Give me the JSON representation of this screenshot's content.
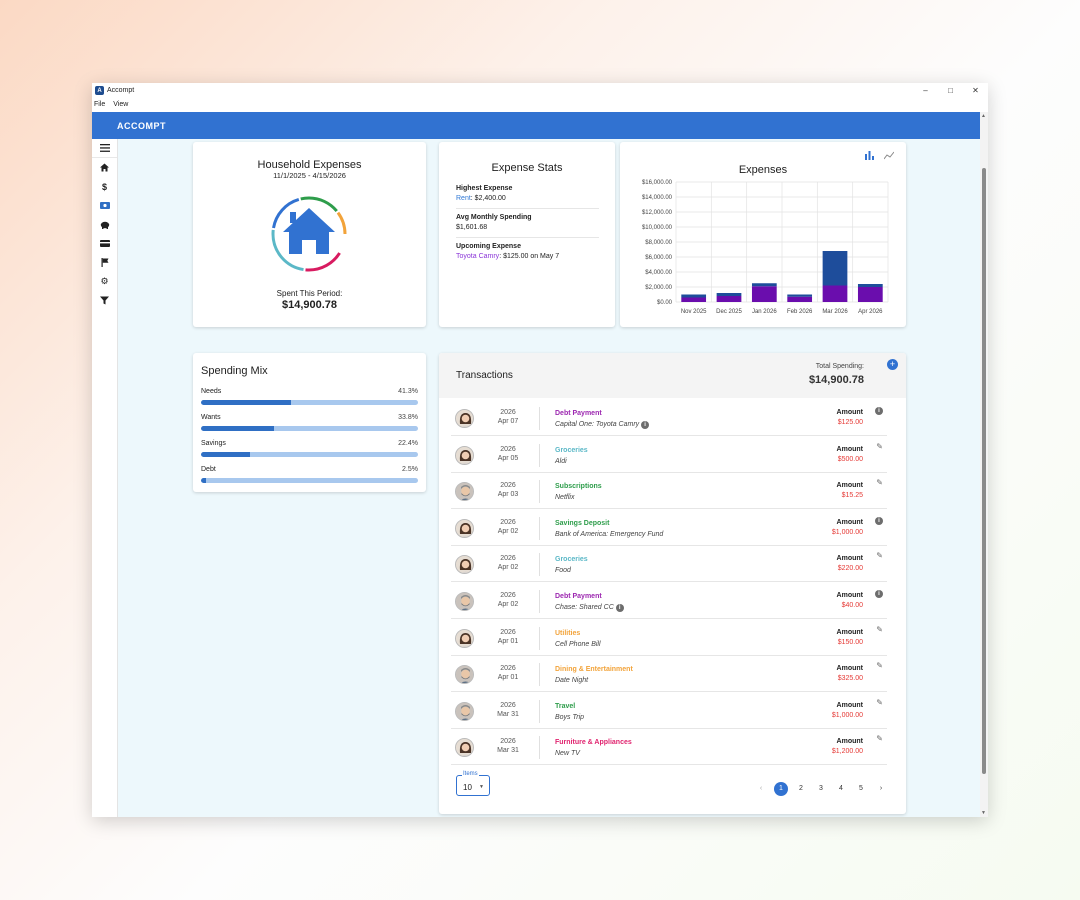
{
  "window": {
    "title": "Accompt",
    "menu": [
      "File",
      "View"
    ]
  },
  "appbar": {
    "title": "ACCOMPT"
  },
  "sidebar": {
    "items": [
      "menu-icon",
      "home-icon",
      "dollar-icon",
      "cash-icon",
      "piggy-bank-icon",
      "credit-card-icon",
      "flag-icon",
      "gear-icon",
      "filter-icon"
    ]
  },
  "household": {
    "title": "Household Expenses",
    "dates": "11/1/2025 - 4/15/2026",
    "spent_label": "Spent This Period:",
    "spent_value": "$14,900.78"
  },
  "stats": {
    "title": "Expense Stats",
    "highest_label": "Highest Expense",
    "highest_link": "Rent",
    "highest_value": ": $2,400.00",
    "avg_label": "Avg Monthly Spending",
    "avg_value": "$1,601.68",
    "upcoming_label": "Upcoming Expense",
    "upcoming_link": "Toyota Camry",
    "upcoming_value": ": $125.00 on May 7"
  },
  "chart_data": {
    "type": "bar",
    "title": "Expenses",
    "categories": [
      "Nov 2025",
      "Dec 2025",
      "Jan 2026",
      "Feb 2026",
      "Mar 2026",
      "Apr 2026"
    ],
    "series": [
      {
        "values": [
          600,
          800,
          2100,
          700,
          2200,
          2000
        ],
        "color": "#6a0dad"
      },
      {
        "values": [
          400,
          400,
          400,
          300,
          4600,
          400
        ],
        "color": "#1e4d9b"
      }
    ],
    "yticks": [
      "$0.00",
      "$2,000.00",
      "$4,000.00",
      "$6,000.00",
      "$8,000.00",
      "$10,000.00",
      "$12,000.00",
      "$14,000.00",
      "$16,000.00"
    ],
    "ylim": [
      0,
      16000
    ],
    "stacked": true,
    "grid": true
  },
  "mix": {
    "title": "Spending Mix",
    "rows": [
      {
        "label": "Needs",
        "pct": "41.3%",
        "value": 41.3
      },
      {
        "label": "Wants",
        "pct": "33.8%",
        "value": 33.8
      },
      {
        "label": "Savings",
        "pct": "22.4%",
        "value": 22.4
      },
      {
        "label": "Debt",
        "pct": "2.5%",
        "value": 2.5
      }
    ]
  },
  "transactions": {
    "title": "Transactions",
    "total_label": "Total Spending:",
    "total_value": "$14,900.78",
    "amount_label": "Amount",
    "rows": [
      {
        "year": "2026",
        "date": "Apr 07",
        "category": "Debt Payment",
        "cat_color": "#9c27b0",
        "desc": "Capital One: Toyota Camry",
        "info_desc": true,
        "amount": "$125.00",
        "action": "info",
        "avatar": "female"
      },
      {
        "year": "2026",
        "date": "Apr 05",
        "category": "Groceries",
        "cat_color": "#5bb8c7",
        "desc": "Aldi",
        "amount": "$500.00",
        "action": "edit",
        "avatar": "female"
      },
      {
        "year": "2026",
        "date": "Apr 03",
        "category": "Subscriptions",
        "cat_color": "#2e9d4b",
        "desc": "Netflix",
        "amount": "$15.25",
        "action": "edit",
        "avatar": "male"
      },
      {
        "year": "2026",
        "date": "Apr 02",
        "category": "Savings Deposit",
        "cat_color": "#2e9d4b",
        "desc": "Bank of America: Emergency Fund",
        "amount": "$1,000.00",
        "action": "info",
        "avatar": "female"
      },
      {
        "year": "2026",
        "date": "Apr 02",
        "category": "Groceries",
        "cat_color": "#5bb8c7",
        "desc": "Food",
        "amount": "$220.00",
        "action": "edit",
        "avatar": "female"
      },
      {
        "year": "2026",
        "date": "Apr 02",
        "category": "Debt Payment",
        "cat_color": "#9c27b0",
        "desc": "Chase: Shared CC",
        "info_desc": true,
        "amount": "$40.00",
        "action": "info",
        "avatar": "male"
      },
      {
        "year": "2026",
        "date": "Apr 01",
        "category": "Utilities",
        "cat_color": "#f2a33a",
        "desc": "Cell Phone Bill",
        "amount": "$150.00",
        "action": "edit",
        "avatar": "female"
      },
      {
        "year": "2026",
        "date": "Apr 01",
        "category": "Dining & Entertainment",
        "cat_color": "#f2a33a",
        "desc": "Date Night",
        "amount": "$325.00",
        "action": "edit",
        "avatar": "male"
      },
      {
        "year": "2026",
        "date": "Mar 31",
        "category": "Travel",
        "cat_color": "#2e9d4b",
        "desc": "Boys Trip",
        "amount": "$1,000.00",
        "action": "edit",
        "avatar": "male"
      },
      {
        "year": "2026",
        "date": "Mar 31",
        "category": "Furniture & Appliances",
        "cat_color": "#e0246f",
        "desc": "New TV",
        "amount": "$1,200.00",
        "action": "edit",
        "avatar": "female"
      }
    ],
    "items_label": "Items",
    "items_value": "10",
    "pages": [
      "1",
      "2",
      "3",
      "4",
      "5"
    ]
  }
}
